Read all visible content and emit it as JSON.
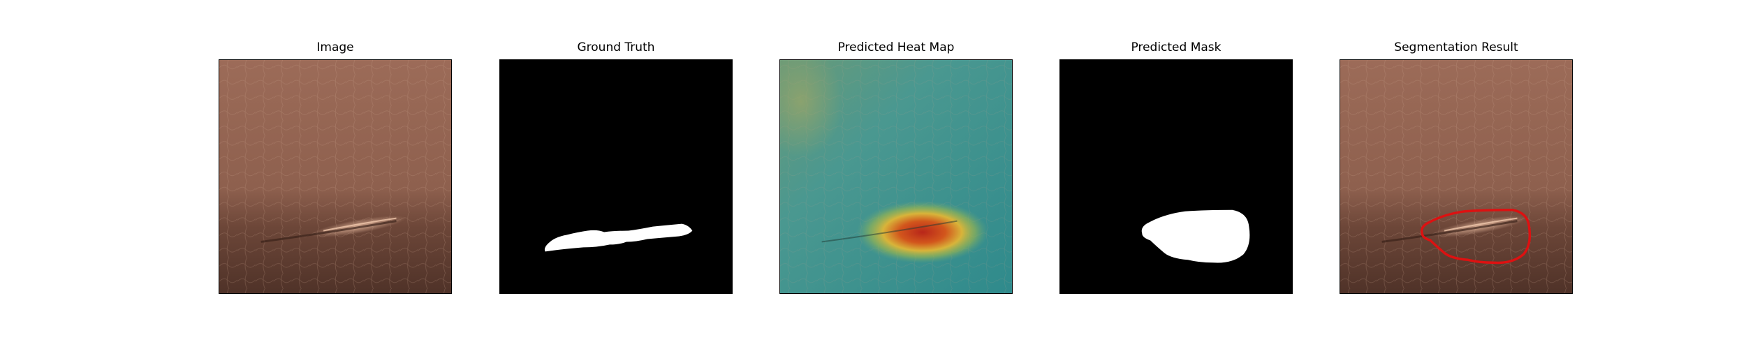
{
  "figure": {
    "panels": [
      {
        "title": "Image"
      },
      {
        "title": "Ground Truth"
      },
      {
        "title": "Predicted Heat Map"
      },
      {
        "title": "Predicted Mask"
      },
      {
        "title": "Segmentation Result"
      }
    ]
  },
  "colors": {
    "leather_light": "#9a6a58",
    "leather_dark": "#5a3a2e",
    "mask_background": "#000000",
    "mask_foreground": "#ffffff",
    "heat_cold": "#2e8e8a",
    "heat_hot": "#c8341c",
    "contour": "#dd1111"
  }
}
